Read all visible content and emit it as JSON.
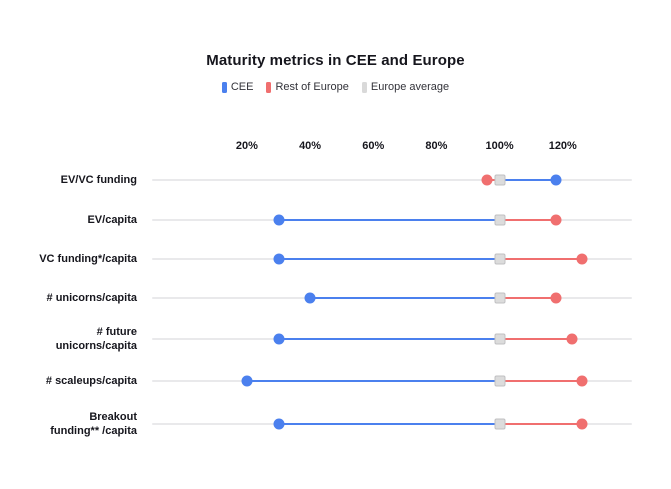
{
  "title": "Maturity metrics in CEE and Europe",
  "legend": {
    "items": [
      {
        "label": "CEE",
        "color": "#4b80ee"
      },
      {
        "label": "Rest of Europe",
        "color": "#f06f6f"
      },
      {
        "label": "Europe average",
        "color": "#d9d9d9"
      }
    ]
  },
  "chart_data": {
    "type": "dumbbell",
    "title": "Maturity metrics in CEE and Europe",
    "unit": "%",
    "grid": false,
    "legend_position": "top",
    "x_ticks": [
      "20%",
      "40%",
      "60%",
      "80%",
      "100%",
      "120%"
    ],
    "x_tick_values": [
      20,
      40,
      60,
      80,
      100,
      120
    ],
    "x_range": [
      20,
      120
    ],
    "categories": [
      "EV/VC funding",
      "EV/capita",
      "VC funding*/capita",
      "# unicorns/capita",
      "# future unicorns/capita",
      "# scaleups/capita",
      "Breakout funding** /capita"
    ],
    "category_label_lines": [
      [
        "EV/VC funding"
      ],
      [
        "EV/capita"
      ],
      [
        "VC funding*/capita"
      ],
      [
        "# unicorns/capita"
      ],
      [
        "# future",
        "unicorns/capita"
      ],
      [
        "# scaleups/capita"
      ],
      [
        "Breakout",
        "funding** /capita"
      ]
    ],
    "series": [
      {
        "name": "CEE",
        "color": "#4b80ee",
        "values": [
          118,
          30,
          30,
          40,
          30,
          20,
          30
        ]
      },
      {
        "name": "Rest of Europe",
        "color": "#f06f6f",
        "values": [
          96,
          118,
          126,
          118,
          123,
          126,
          126
        ]
      },
      {
        "name": "Europe average",
        "color": "#d9d9d9",
        "values": [
          100,
          100,
          100,
          100,
          100,
          100,
          100
        ]
      }
    ]
  },
  "colors": {
    "track": "#e9e9eb",
    "average_fill": "#dcdcdc",
    "average_border": "#c0c0c2",
    "text": "#16161d"
  }
}
